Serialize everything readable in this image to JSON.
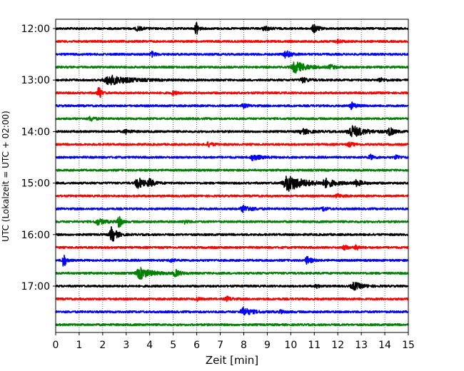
{
  "chart_data": {
    "type": "line",
    "title": "",
    "xlabel": "Zeit  [min]",
    "ylabel": "UTC (Lokalzeit = UTC + 02:00)",
    "xlim": [
      0,
      15
    ],
    "x_ticks": [
      0,
      1,
      2,
      3,
      4,
      5,
      6,
      7,
      8,
      9,
      10,
      11,
      12,
      13,
      14,
      15
    ],
    "x_tick_labels": [
      "0",
      "1",
      "2",
      "3",
      "4",
      "5",
      "6",
      "7",
      "8",
      "9",
      "10",
      "11",
      "12",
      "13",
      "14",
      "15"
    ],
    "y_tick_labels": [
      {
        "label": "12:00",
        "row": 0
      },
      {
        "label": "13:00",
        "row": 4
      },
      {
        "label": "14:00",
        "row": 8
      },
      {
        "label": "15:00",
        "row": 12
      },
      {
        "label": "16:00",
        "row": 16
      },
      {
        "label": "17:00",
        "row": 20
      }
    ],
    "grid": "vertical dotted at each minute",
    "row_minutes": 15,
    "row_colors": [
      "#000000",
      "#ff0000",
      "#0000ff",
      "#008000"
    ],
    "rows": [
      {
        "start": "12:00",
        "events": [
          {
            "t": 6.0,
            "amp": 1.0,
            "dur": 0.08
          },
          {
            "t": 11.0,
            "amp": 0.55,
            "dur": 0.25
          },
          {
            "t": 8.9,
            "amp": 0.3,
            "dur": 0.3
          },
          {
            "t": 3.5,
            "amp": 0.25,
            "dur": 0.3
          }
        ]
      },
      {
        "start": "12:15",
        "events": [
          {
            "t": 12.0,
            "amp": 0.2,
            "dur": 0.3
          }
        ]
      },
      {
        "start": "12:30",
        "events": [
          {
            "t": 9.8,
            "amp": 0.45,
            "dur": 0.35
          },
          {
            "t": 4.1,
            "amp": 0.3,
            "dur": 0.2
          }
        ]
      },
      {
        "start": "12:45",
        "events": [
          {
            "t": 10.2,
            "amp": 0.7,
            "dur": 0.8
          },
          {
            "t": 11.7,
            "amp": 0.3,
            "dur": 0.2
          }
        ]
      },
      {
        "start": "13:00",
        "events": [
          {
            "t": 2.3,
            "amp": 0.6,
            "dur": 1.4
          },
          {
            "t": 10.5,
            "amp": 0.3,
            "dur": 0.4
          },
          {
            "t": 13.8,
            "amp": 0.25,
            "dur": 0.3
          }
        ]
      },
      {
        "start": "13:15",
        "events": [
          {
            "t": 1.85,
            "amp": 1.0,
            "dur": 0.1
          },
          {
            "t": 5.0,
            "amp": 0.25,
            "dur": 0.2
          }
        ]
      },
      {
        "start": "13:30",
        "events": [
          {
            "t": 12.6,
            "amp": 0.4,
            "dur": 0.25
          },
          {
            "t": 8.0,
            "amp": 0.2,
            "dur": 0.3
          }
        ]
      },
      {
        "start": "13:45",
        "events": [
          {
            "t": 1.5,
            "amp": 0.3,
            "dur": 0.25
          }
        ]
      },
      {
        "start": "14:00",
        "events": [
          {
            "t": 12.6,
            "amp": 0.75,
            "dur": 0.9
          },
          {
            "t": 14.2,
            "amp": 0.5,
            "dur": 0.3
          },
          {
            "t": 10.5,
            "amp": 0.3,
            "dur": 0.6
          },
          {
            "t": 3.0,
            "amp": 0.25,
            "dur": 0.3
          }
        ]
      },
      {
        "start": "14:15",
        "events": [
          {
            "t": 6.5,
            "amp": 0.25,
            "dur": 0.3
          },
          {
            "t": 12.5,
            "amp": 0.25,
            "dur": 0.3
          }
        ]
      },
      {
        "start": "14:30",
        "events": [
          {
            "t": 8.4,
            "amp": 0.35,
            "dur": 0.5
          },
          {
            "t": 13.4,
            "amp": 0.3,
            "dur": 0.2
          },
          {
            "t": 14.5,
            "amp": 0.25,
            "dur": 0.2
          }
        ]
      },
      {
        "start": "14:45",
        "events": []
      },
      {
        "start": "15:00",
        "events": [
          {
            "t": 3.5,
            "amp": 0.75,
            "dur": 0.4
          },
          {
            "t": 4.0,
            "amp": 0.45,
            "dur": 0.3
          },
          {
            "t": 9.9,
            "amp": 1.0,
            "dur": 1.2
          },
          {
            "t": 11.5,
            "amp": 0.45,
            "dur": 0.7
          },
          {
            "t": 12.8,
            "amp": 0.35,
            "dur": 0.4
          }
        ]
      },
      {
        "start": "15:15",
        "events": [
          {
            "t": 12.0,
            "amp": 0.2,
            "dur": 0.3
          }
        ]
      },
      {
        "start": "15:30",
        "events": [
          {
            "t": 8.0,
            "amp": 0.4,
            "dur": 0.5
          },
          {
            "t": 11.4,
            "amp": 0.25,
            "dur": 0.2
          }
        ]
      },
      {
        "start": "15:45",
        "events": [
          {
            "t": 2.7,
            "amp": 1.0,
            "dur": 0.1
          },
          {
            "t": 1.8,
            "amp": 0.35,
            "dur": 0.5
          },
          {
            "t": 5.5,
            "amp": 0.2,
            "dur": 0.2
          }
        ]
      },
      {
        "start": "16:00",
        "events": [
          {
            "t": 2.4,
            "amp": 1.0,
            "dur": 0.3
          }
        ]
      },
      {
        "start": "16:15",
        "events": [
          {
            "t": 12.3,
            "amp": 0.3,
            "dur": 0.2
          },
          {
            "t": 12.8,
            "amp": 0.3,
            "dur": 0.2
          }
        ]
      },
      {
        "start": "16:30",
        "events": [
          {
            "t": 0.35,
            "amp": 1.0,
            "dur": 0.1
          },
          {
            "t": 10.7,
            "amp": 0.45,
            "dur": 0.3
          },
          {
            "t": 4.9,
            "amp": 0.2,
            "dur": 0.2
          }
        ]
      },
      {
        "start": "16:45",
        "events": [
          {
            "t": 3.6,
            "amp": 0.7,
            "dur": 0.8
          },
          {
            "t": 5.1,
            "amp": 0.4,
            "dur": 0.3
          }
        ]
      },
      {
        "start": "17:00",
        "events": [
          {
            "t": 12.7,
            "amp": 0.45,
            "dur": 0.6
          },
          {
            "t": 11.1,
            "amp": 0.2,
            "dur": 0.2
          }
        ]
      },
      {
        "start": "17:15",
        "events": [
          {
            "t": 7.3,
            "amp": 0.25,
            "dur": 0.3
          },
          {
            "t": 6.0,
            "amp": 0.2,
            "dur": 0.2
          }
        ]
      },
      {
        "start": "17:30",
        "events": [
          {
            "t": 8.0,
            "amp": 0.5,
            "dur": 0.6
          },
          {
            "t": 9.6,
            "amp": 0.2,
            "dur": 0.2
          }
        ]
      },
      {
        "start": "17:45",
        "events": []
      }
    ]
  }
}
